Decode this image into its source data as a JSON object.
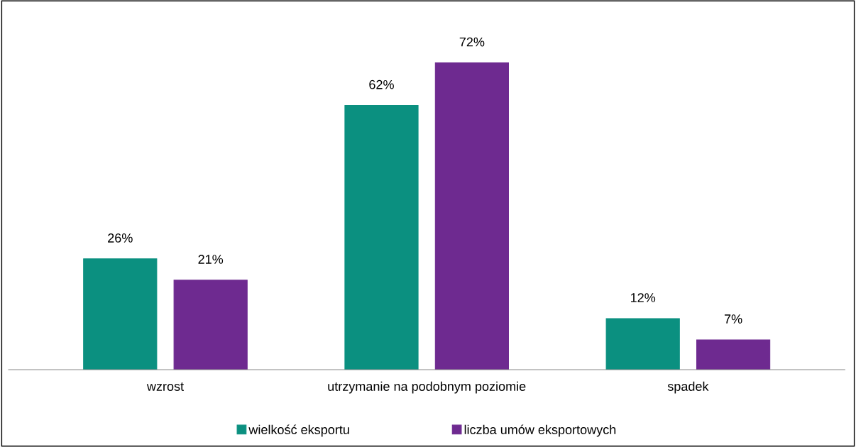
{
  "chart_data": {
    "type": "bar",
    "categories": [
      "wzrost",
      "utrzymanie na podobnym poziomie",
      "spadek"
    ],
    "series": [
      {
        "name": "wielkość eksportu",
        "color": "#0b9080",
        "values": [
          26,
          62,
          12
        ],
        "value_labels": [
          "26%",
          "62%",
          "12%"
        ]
      },
      {
        "name": "liczba umów eksportowych",
        "color": "#6e2a90",
        "values": [
          21,
          72,
          7
        ],
        "value_labels": [
          "21%",
          "72%",
          "7%"
        ]
      }
    ],
    "legend": "bottom",
    "grid": false
  }
}
